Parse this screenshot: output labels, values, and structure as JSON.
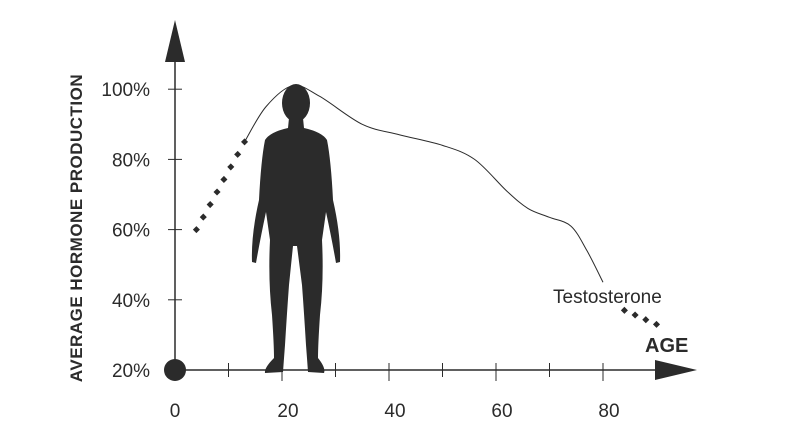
{
  "chart_data": {
    "type": "line",
    "title": "",
    "xlabel": "AGE",
    "ylabel": "AVERAGE HORMONE PRODUCTION",
    "xlim": [
      0,
      90
    ],
    "ylim": [
      20,
      100
    ],
    "x_ticks": [
      "0",
      "20",
      "40",
      "60",
      "80"
    ],
    "y_ticks": [
      "20%",
      "40%",
      "60%",
      "80%",
      "100%"
    ],
    "grid": false,
    "series": [
      {
        "name": "Testosterone",
        "style": "solid",
        "x": [
          13,
          17,
          22,
          27,
          35,
          42,
          50,
          56,
          62,
          66,
          70,
          74,
          77,
          80
        ],
        "y": [
          85,
          95,
          101,
          98,
          90,
          87,
          84,
          80,
          71,
          66,
          63.5,
          61,
          54,
          45
        ]
      },
      {
        "style": "dotted",
        "x": [
          4,
          13
        ],
        "y": [
          60,
          85
        ]
      },
      {
        "style": "dotted",
        "x": [
          84,
          90
        ],
        "y": [
          37,
          33
        ]
      }
    ],
    "annotations": [
      "Testosterone"
    ],
    "colors": {
      "ink": "#2b2b2b"
    },
    "illustration": "human-silhouette"
  }
}
